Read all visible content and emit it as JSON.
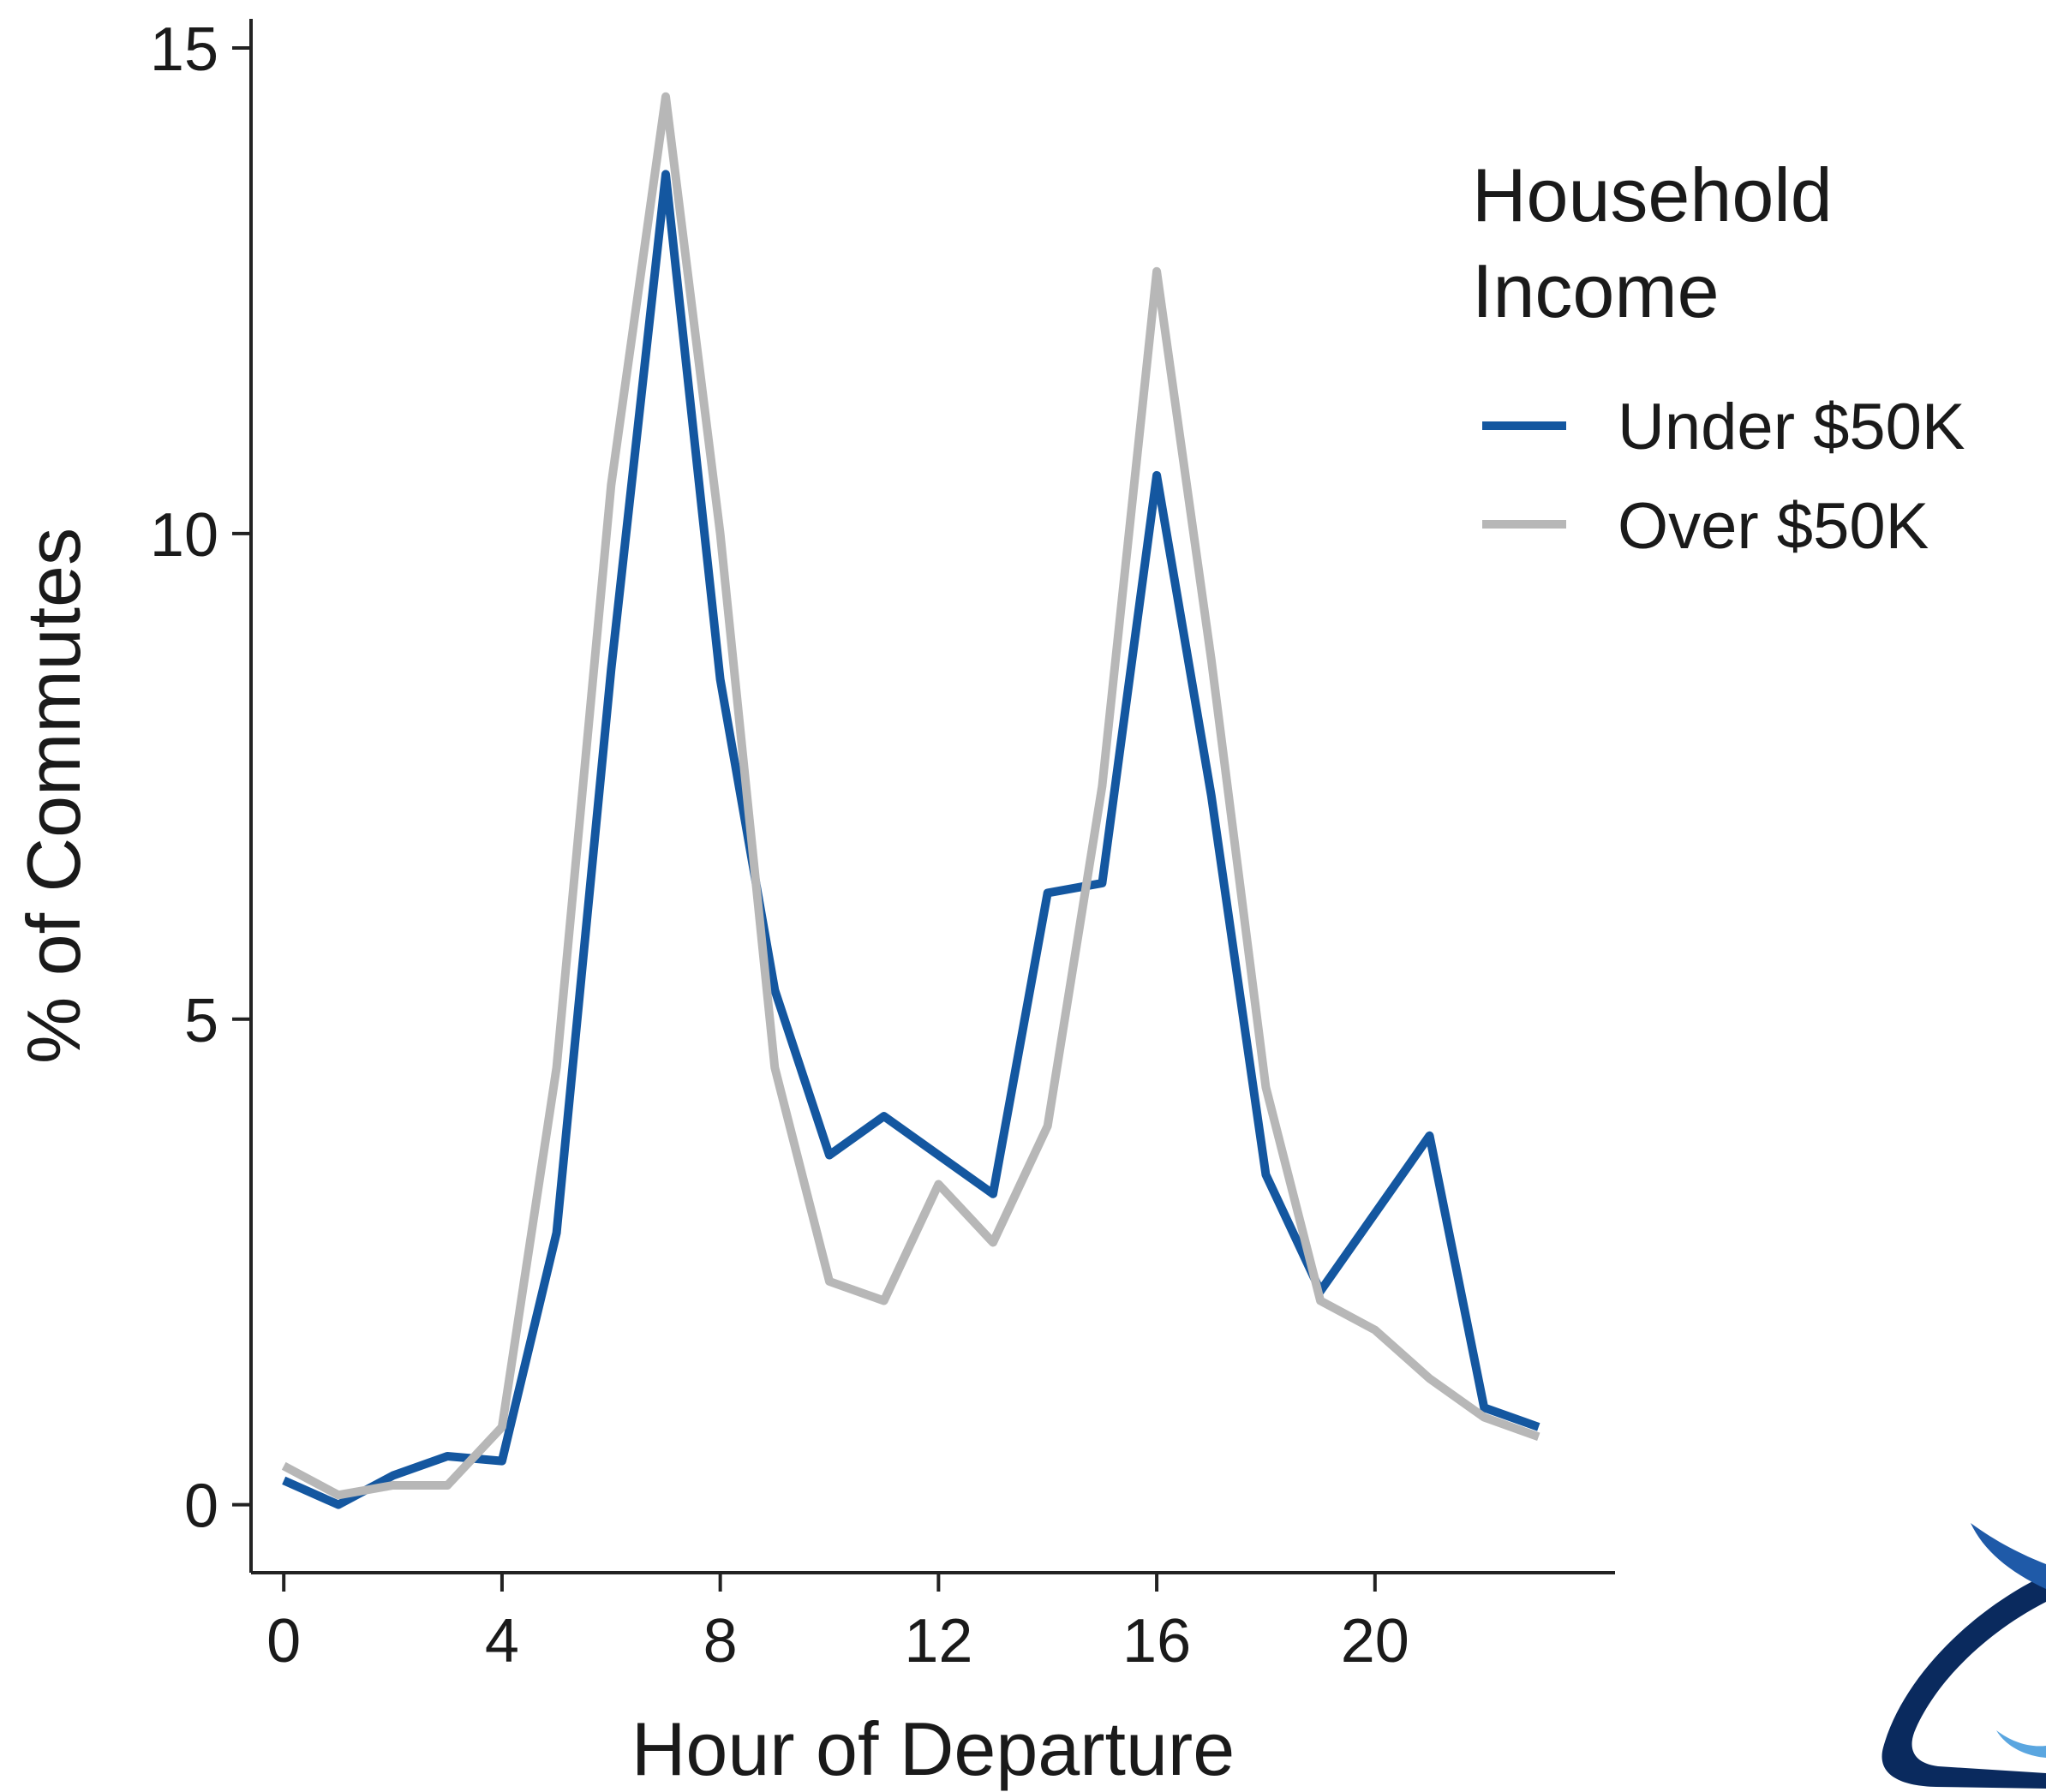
{
  "chart_data": {
    "type": "line",
    "xlabel": "Hour of Departure",
    "ylabel": "% of Commutes",
    "xlim": [
      -0.6,
      24.4
    ],
    "ylim": [
      -0.7,
      15.3
    ],
    "x_ticks": [
      0,
      4,
      8,
      12,
      16,
      20
    ],
    "y_ticks": [
      0,
      5,
      10,
      15
    ],
    "grid": false,
    "legend": {
      "title_lines": [
        "Household",
        "Income"
      ],
      "placement": "right"
    },
    "x": [
      0,
      1,
      2,
      3,
      4,
      5,
      6,
      7,
      8,
      9,
      10,
      11,
      12,
      13,
      14,
      15,
      16,
      17,
      18,
      19,
      20,
      21,
      22,
      23
    ],
    "series": [
      {
        "name": "Under $50K",
        "color": "#1457a0",
        "values": [
          0.25,
          0.0,
          0.3,
          0.5,
          0.45,
          2.8,
          8.6,
          13.7,
          8.5,
          5.3,
          3.6,
          4.0,
          3.6,
          3.2,
          6.3,
          6.4,
          10.6,
          7.3,
          3.4,
          2.2,
          3.0,
          3.8,
          1.0,
          0.8
        ]
      },
      {
        "name": "Over $50K",
        "color": "#b7b7b7",
        "values": [
          0.4,
          0.1,
          0.2,
          0.2,
          0.8,
          4.5,
          10.5,
          14.5,
          10.0,
          4.5,
          2.3,
          2.1,
          3.3,
          2.7,
          3.9,
          7.4,
          12.7,
          8.7,
          4.3,
          2.1,
          1.8,
          1.3,
          0.9,
          0.7
        ]
      }
    ]
  },
  "logo": {
    "name": "swoosh-logo",
    "colors": [
      "#1f5aa8",
      "#0a2a5e",
      "#5aa6e0"
    ]
  }
}
